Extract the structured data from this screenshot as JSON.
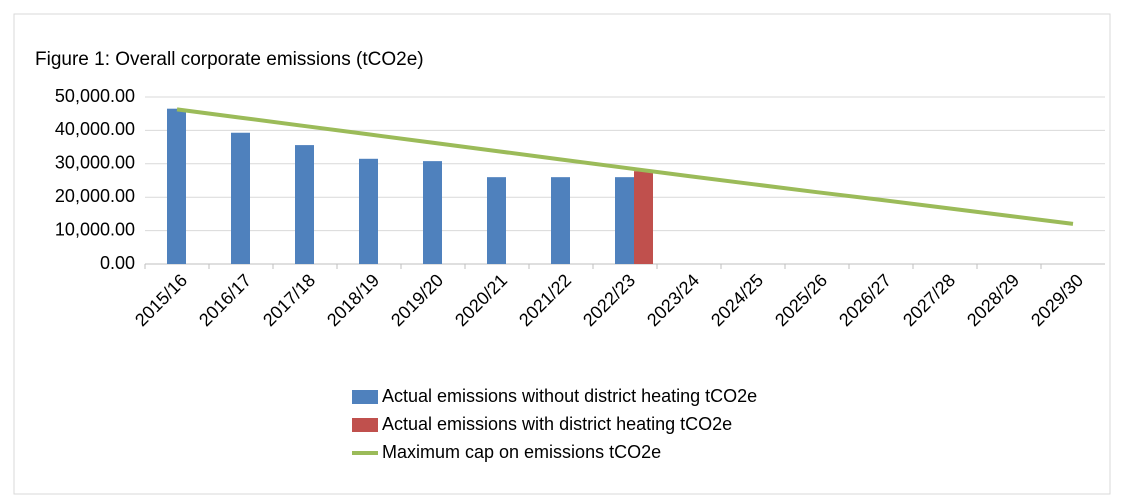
{
  "chart_data": {
    "type": "bar",
    "title": "Figure 1: Overall  corporate emissions (tCO2e)",
    "categories": [
      "2015/16",
      "2016/17",
      "2017/18",
      "2018/19",
      "2019/20",
      "2020/21",
      "2021/22",
      "2022/23",
      "2023/24",
      "2024/25",
      "2025/26",
      "2026/27",
      "2027/28",
      "2028/29",
      "2029/30"
    ],
    "series": [
      {
        "name": "Actual emissions without district heating tCO2e",
        "type": "bar",
        "color": "#4f81bd",
        "values": [
          46500,
          39300,
          35600,
          31500,
          30800,
          26000,
          26000,
          26000,
          null,
          null,
          null,
          null,
          null,
          null,
          null
        ]
      },
      {
        "name": "Actual emissions with district heating tCO2e",
        "type": "bar",
        "color": "#c0504d",
        "values": [
          null,
          null,
          null,
          null,
          null,
          null,
          null,
          27800,
          null,
          null,
          null,
          null,
          null,
          null,
          null
        ]
      },
      {
        "name": "Maximum cap on emissions  tCO2e",
        "type": "line",
        "color": "#9bbb59",
        "values": [
          46300,
          43800,
          41300,
          38800,
          36300,
          33800,
          31300,
          28800,
          26300,
          23900,
          21500,
          19200,
          16800,
          14400,
          12000
        ]
      }
    ],
    "ylim": [
      0,
      50000
    ],
    "yticks": [
      {
        "value": 0,
        "label": "0.00"
      },
      {
        "value": 10000,
        "label": "10,000.00"
      },
      {
        "value": 20000,
        "label": "20,000.00"
      },
      {
        "value": 30000,
        "label": "30,000.00"
      },
      {
        "value": 40000,
        "label": "40,000.00"
      },
      {
        "value": 50000,
        "label": "50,000.00"
      }
    ],
    "grid": true,
    "legend": "bottom"
  }
}
